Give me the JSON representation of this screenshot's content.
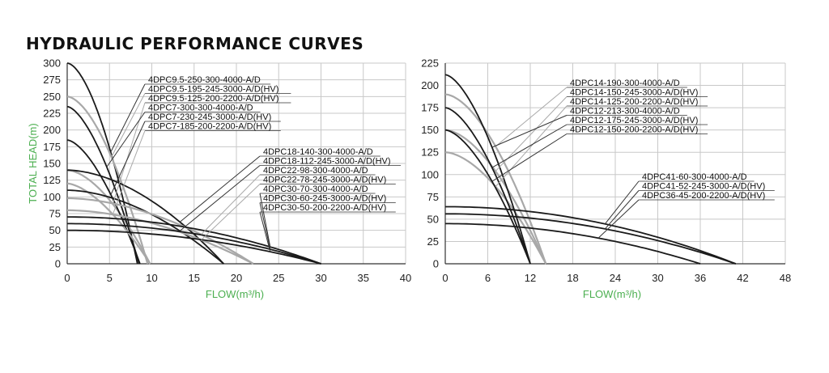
{
  "page": {
    "title": "HYDRAULIC PERFORMANCE CURVES",
    "colors": {
      "axis_label": "#4caf50",
      "grid": "#c8c8c8",
      "dark": "#1a1a1a",
      "light": "#a8a8a8"
    }
  },
  "chart_data": [
    {
      "type": "line",
      "xlabel": "FLOW(m³/h)",
      "ylabel": "TOTAL HEAD(m)",
      "xlim": [
        0,
        40
      ],
      "ylim": [
        0,
        300
      ],
      "xticks": [
        0,
        5,
        10,
        15,
        20,
        25,
        30,
        35,
        40
      ],
      "yticks": [
        0,
        25,
        50,
        75,
        100,
        125,
        150,
        175,
        200,
        225,
        250,
        275,
        300
      ],
      "grid": true,
      "series": [
        {
          "name": "4DPC9.5-250-300-4000-A/D",
          "tone": "dark",
          "shut_off": 300,
          "max_flow": 8.3,
          "exp": 1.7
        },
        {
          "name": "4DPC9.5-195-245-3000-A/D(HV)",
          "tone": "light",
          "shut_off": 250,
          "max_flow": 9.5,
          "exp": 1.7
        },
        {
          "name": "4DPC9.5-125-200-2200-A/D(HV)",
          "tone": "light",
          "shut_off": 140,
          "max_flow": 9.8,
          "exp": 1.7
        },
        {
          "name": "4DPC7-300-300-4000-A/D",
          "tone": "dark",
          "shut_off": 235,
          "max_flow": 8.5,
          "exp": 1.6
        },
        {
          "name": "4DPC7-230-245-3000-A/D(HV)",
          "tone": "dark",
          "shut_off": 185,
          "max_flow": 8.6,
          "exp": 1.6
        },
        {
          "name": "4DPC7-185-200-2200-A/D(HV)",
          "tone": "light",
          "shut_off": 120,
          "max_flow": 9.8,
          "exp": 1.6
        },
        {
          "name": "4DPC18-140-300-4000-A/D",
          "tone": "dark",
          "shut_off": 140,
          "max_flow": 18.5,
          "exp": 1.8
        },
        {
          "name": "4DPC18-112-245-3000-A/D(HV)",
          "tone": "dark",
          "shut_off": 110,
          "max_flow": 18.5,
          "exp": 1.8
        },
        {
          "name": "4DPC22-98-300-4000-A/D",
          "tone": "light",
          "shut_off": 98,
          "max_flow": 22,
          "exp": 1.8
        },
        {
          "name": "4DPC22-78-245-3000-A/D(HV)",
          "tone": "light",
          "shut_off": 80,
          "max_flow": 22,
          "exp": 1.8
        },
        {
          "name": "4DPC30-70-300-4000-A/D",
          "tone": "dark",
          "shut_off": 70,
          "max_flow": 30,
          "exp": 2.0
        },
        {
          "name": "4DPC30-60-245-3000-A/D(HV)",
          "tone": "dark",
          "shut_off": 60,
          "max_flow": 30,
          "exp": 2.0
        },
        {
          "name": "4DPC30-50-200-2200-A/D(HV)",
          "tone": "dark",
          "shut_off": 50,
          "max_flow": 30,
          "exp": 2.0
        }
      ]
    },
    {
      "type": "line",
      "xlabel": "FLOW(m³/h)",
      "ylabel": "",
      "xlim": [
        0,
        48
      ],
      "ylim": [
        0,
        225
      ],
      "xticks": [
        0,
        6,
        12,
        18,
        24,
        30,
        36,
        42,
        48
      ],
      "yticks": [
        0,
        25,
        50,
        75,
        100,
        125,
        150,
        175,
        200,
        225
      ],
      "grid": true,
      "series": [
        {
          "name": "4DPC14-190-300-4000-A/D",
          "tone": "light",
          "shut_off": 190,
          "max_flow": 14.2,
          "exp": 1.7
        },
        {
          "name": "4DPC14-150-245-3000-A/D(HV)",
          "tone": "light",
          "shut_off": 150,
          "max_flow": 14.2,
          "exp": 1.7
        },
        {
          "name": "4DPC14-125-200-2200-A/D(HV)",
          "tone": "light",
          "shut_off": 125,
          "max_flow": 14.2,
          "exp": 1.7
        },
        {
          "name": "4DPC12-213-300-4000-A/D",
          "tone": "dark",
          "shut_off": 212,
          "max_flow": 12,
          "exp": 1.6
        },
        {
          "name": "4DPC12-175-245-3000-A/D(HV)",
          "tone": "dark",
          "shut_off": 175,
          "max_flow": 12,
          "exp": 1.6
        },
        {
          "name": "4DPC12-150-200-2200-A/D(HV)",
          "tone": "dark",
          "shut_off": 150,
          "max_flow": 12,
          "exp": 1.6
        },
        {
          "name": "4DPC41-60-300-4000-A/D",
          "tone": "dark",
          "shut_off": 64,
          "max_flow": 41,
          "exp": 2.0
        },
        {
          "name": "4DPC41-52-245-3000-A/D(HV)",
          "tone": "dark",
          "shut_off": 56,
          "max_flow": 41,
          "exp": 2.0
        },
        {
          "name": "4DPC36-45-200-2200-A/D(HV)",
          "tone": "dark",
          "shut_off": 45,
          "max_flow": 36,
          "exp": 2.0
        }
      ]
    }
  ]
}
